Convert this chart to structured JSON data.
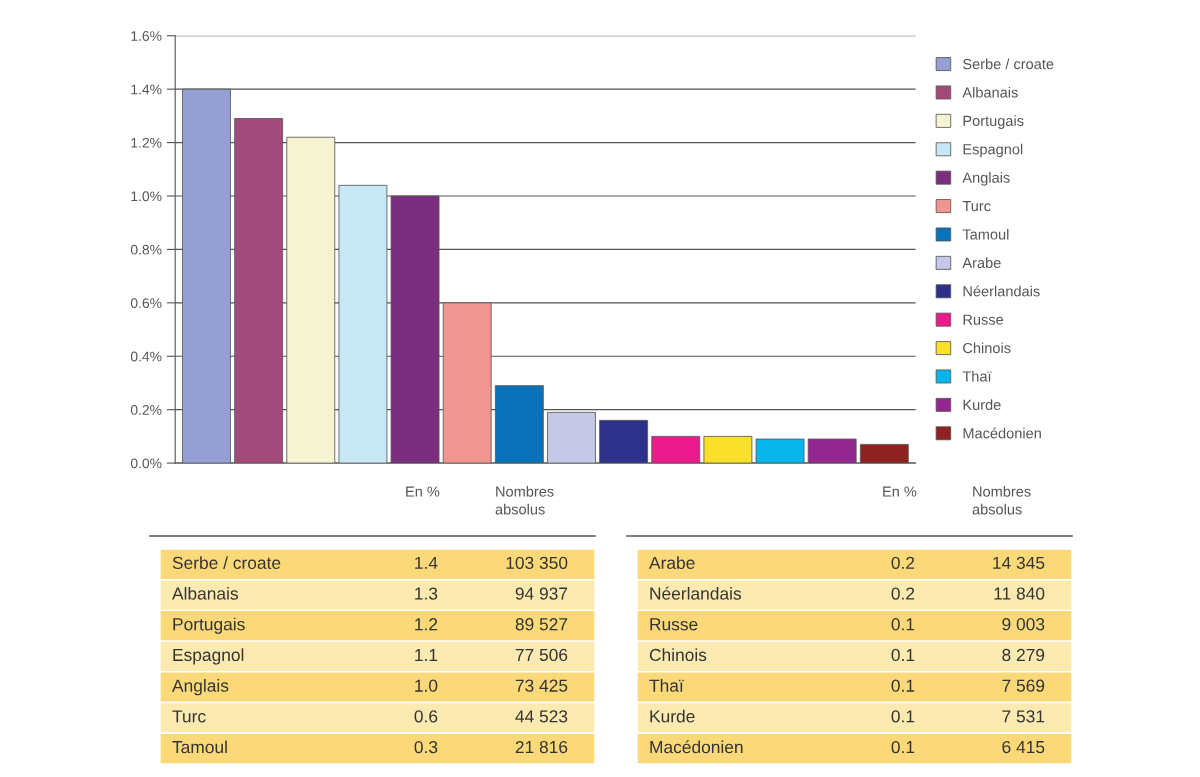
{
  "chart_data": {
    "type": "bar",
    "categories": [
      null,
      null,
      null,
      null,
      null,
      null,
      null,
      null,
      null,
      null,
      null,
      null,
      null,
      null
    ],
    "series": [
      {
        "name": "Serbe / croate",
        "color": "#959fd4",
        "values": [
          1.4,
          null,
          null,
          null,
          null,
          null,
          null,
          null,
          null,
          null,
          null,
          null,
          null,
          null
        ]
      },
      {
        "name": "Albanais",
        "color": "#a24b7b",
        "values": [
          null,
          1.29,
          null,
          null,
          null,
          null,
          null,
          null,
          null,
          null,
          null,
          null,
          null,
          null
        ]
      },
      {
        "name": "Portugais",
        "color": "#f5f3d2",
        "values": [
          null,
          null,
          1.22,
          null,
          null,
          null,
          null,
          null,
          null,
          null,
          null,
          null,
          null,
          null
        ]
      },
      {
        "name": "Espagnol",
        "color": "#c9e8f5",
        "values": [
          null,
          null,
          null,
          1.04,
          null,
          null,
          null,
          null,
          null,
          null,
          null,
          null,
          null,
          null
        ]
      },
      {
        "name": "Anglais",
        "color": "#7b2d7e",
        "values": [
          null,
          null,
          null,
          null,
          1.0,
          null,
          null,
          null,
          null,
          null,
          null,
          null,
          null,
          null
        ]
      },
      {
        "name": "Turc",
        "color": "#f0958f",
        "values": [
          null,
          null,
          null,
          null,
          null,
          0.6,
          null,
          null,
          null,
          null,
          null,
          null,
          null,
          null
        ]
      },
      {
        "name": "Tamoul",
        "color": "#0a72b8",
        "values": [
          null,
          null,
          null,
          null,
          null,
          null,
          0.29,
          null,
          null,
          null,
          null,
          null,
          null,
          null
        ]
      },
      {
        "name": "Arabe",
        "color": "#c5c8e6",
        "values": [
          null,
          null,
          null,
          null,
          null,
          null,
          null,
          0.19,
          null,
          null,
          null,
          null,
          null,
          null
        ]
      },
      {
        "name": "Néerlandais",
        "color": "#2e3189",
        "values": [
          null,
          null,
          null,
          null,
          null,
          null,
          null,
          null,
          0.16,
          null,
          null,
          null,
          null,
          null
        ]
      },
      {
        "name": "Russe",
        "color": "#ec1b8c",
        "values": [
          null,
          null,
          null,
          null,
          null,
          null,
          null,
          null,
          null,
          0.1,
          null,
          null,
          null,
          null
        ]
      },
      {
        "name": "Chinois",
        "color": "#f9e12b",
        "values": [
          null,
          null,
          null,
          null,
          null,
          null,
          null,
          null,
          null,
          null,
          0.1,
          null,
          null,
          null
        ]
      },
      {
        "name": "Thaï",
        "color": "#08b5ea",
        "values": [
          null,
          null,
          null,
          null,
          null,
          null,
          null,
          null,
          null,
          null,
          null,
          0.09,
          null,
          null
        ]
      },
      {
        "name": "Kurde",
        "color": "#93278f",
        "values": [
          null,
          null,
          null,
          null,
          null,
          null,
          null,
          null,
          null,
          null,
          null,
          null,
          0.09,
          null
        ]
      },
      {
        "name": "Macédonien",
        "color": "#8e2221",
        "values": [
          null,
          null,
          null,
          null,
          null,
          null,
          null,
          null,
          null,
          null,
          null,
          null,
          null,
          0.07
        ]
      }
    ],
    "annotations": [
      "En %",
      "Nombres\nabsolus",
      "1.4",
      "103 350",
      "1.3",
      "94 937",
      "1.2",
      "89 527",
      "1.1",
      "77 506",
      "1.0",
      "73 425",
      "0.6",
      "44 523",
      "0.3",
      "21 816",
      "0.2",
      "14 345",
      "0.2",
      "11 840",
      "0.1",
      "9 003",
      "0.1",
      "8 279",
      "0.1",
      "7 569",
      "0.1",
      "7 531",
      "0.1",
      "6 415"
    ],
    "ylim": [
      0,
      1.6
    ],
    "yticks": [
      {
        "value": 0,
        "label": "0.0%"
      },
      {
        "value": 0.2,
        "label": "0.2%"
      },
      {
        "value": 0.4,
        "label": "0.4%"
      },
      {
        "value": 0.6,
        "label": "0.6%"
      },
      {
        "value": 0.8,
        "label": "0.8%"
      },
      {
        "value": 1.0,
        "label": "1.0%"
      },
      {
        "value": 1.2,
        "label": "1.2%"
      },
      {
        "value": 1.4,
        "label": "1.4%"
      },
      {
        "value": 1.6,
        "label": "1.6%"
      }
    ],
    "grid": "y",
    "legend": "right",
    "tick_labels": "y"
  }
}
